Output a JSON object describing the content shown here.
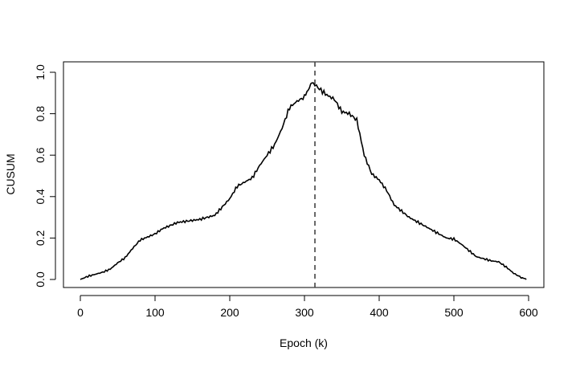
{
  "chart_data": {
    "type": "line",
    "title": "",
    "xlabel": "Epoch (k)",
    "ylabel": "CUSUM",
    "xlim": [
      0,
      597
    ],
    "ylim": [
      0,
      1
    ],
    "x_ticks": [
      0,
      100,
      200,
      300,
      400,
      500,
      600
    ],
    "x_tick_labels": [
      "0",
      "100",
      "200",
      "300",
      "400",
      "500",
      "600"
    ],
    "y_ticks": [
      0.0,
      0.2,
      0.4,
      0.6,
      0.8,
      1.0
    ],
    "y_tick_labels": [
      "0.0",
      "0.2",
      "0.4",
      "0.6",
      "0.8",
      "1.0"
    ],
    "grid": false,
    "legend": "none",
    "change_point": 314,
    "series": [
      {
        "color": "#000000",
        "x": [
          0,
          10,
          20,
          30,
          40,
          50,
          60,
          70,
          80,
          90,
          100,
          110,
          120,
          130,
          140,
          150,
          160,
          170,
          180,
          190,
          200,
          210,
          220,
          230,
          240,
          250,
          260,
          270,
          280,
          290,
          300,
          305,
          310,
          314,
          320,
          330,
          340,
          350,
          360,
          370,
          380,
          390,
          400,
          410,
          420,
          430,
          440,
          450,
          460,
          470,
          480,
          490,
          500,
          510,
          520,
          530,
          540,
          550,
          560,
          570,
          580,
          590,
          597
        ],
        "y": [
          0.0,
          0.015,
          0.025,
          0.035,
          0.05,
          0.08,
          0.105,
          0.15,
          0.19,
          0.205,
          0.22,
          0.245,
          0.26,
          0.275,
          0.28,
          0.285,
          0.29,
          0.3,
          0.31,
          0.35,
          0.39,
          0.45,
          0.47,
          0.49,
          0.55,
          0.6,
          0.65,
          0.73,
          0.83,
          0.86,
          0.88,
          0.92,
          0.95,
          0.94,
          0.92,
          0.89,
          0.87,
          0.81,
          0.8,
          0.77,
          0.6,
          0.51,
          0.48,
          0.43,
          0.36,
          0.33,
          0.3,
          0.28,
          0.26,
          0.24,
          0.22,
          0.2,
          0.195,
          0.17,
          0.14,
          0.11,
          0.1,
          0.09,
          0.085,
          0.06,
          0.03,
          0.01,
          0.0
        ]
      }
    ]
  }
}
